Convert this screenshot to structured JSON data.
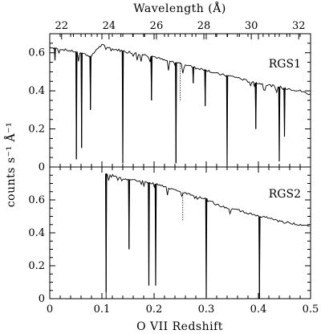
{
  "chart_data": {
    "type": "line",
    "top_axis": {
      "label": "Wavelength (Å)",
      "range": [
        21.5,
        32.5
      ],
      "ticks": [
        22,
        24,
        26,
        28,
        30,
        32
      ]
    },
    "x_axis": {
      "label": "O VII Redshift",
      "range": [
        0,
        0.5
      ],
      "ticks": [
        "0",
        "0.1",
        "0.2",
        "0.3",
        "0.4",
        "0.5"
      ]
    },
    "y_label": "counts s⁻¹ Å⁻¹",
    "panels": [
      {
        "label": "RGS1",
        "ylim": [
          0,
          0.7
        ],
        "yticks": [
          "0",
          "0.2",
          "0.4",
          "0.6"
        ],
        "x": [
          0,
          0.02,
          0.04,
          0.06,
          0.08,
          0.09,
          0.1,
          0.12,
          0.14,
          0.16,
          0.18,
          0.2,
          0.22,
          0.24,
          0.26,
          0.28,
          0.3,
          0.32,
          0.34,
          0.36,
          0.38,
          0.4,
          0.42,
          0.44,
          0.46,
          0.48,
          0.5
        ],
        "values": [
          0.63,
          0.62,
          0.61,
          0.6,
          0.58,
          0.62,
          0.64,
          0.62,
          0.61,
          0.6,
          0.59,
          0.58,
          0.56,
          0.55,
          0.54,
          0.52,
          0.51,
          0.49,
          0.48,
          0.47,
          0.45,
          0.44,
          0.43,
          0.42,
          0.41,
          0.4,
          0.38
        ],
        "absorption_lines": [
          {
            "x": 0.01,
            "depth": 0.56
          },
          {
            "x": 0.051,
            "depth": 0.04
          },
          {
            "x": 0.061,
            "depth": 0.1
          },
          {
            "x": 0.078,
            "depth": 0.3
          },
          {
            "x": 0.14,
            "depth": 0.02
          },
          {
            "x": 0.195,
            "depth": 0.35
          },
          {
            "x": 0.242,
            "depth": 0.02
          },
          {
            "x": 0.275,
            "depth": 0.44
          },
          {
            "x": 0.298,
            "depth": 0.32
          },
          {
            "x": 0.34,
            "depth": 0.01
          },
          {
            "x": 0.395,
            "depth": 0.2
          },
          {
            "x": 0.44,
            "depth": 0.03
          },
          {
            "x": 0.45,
            "depth": 0.16
          }
        ],
        "dotted_lines": [
          {
            "x": 0.25,
            "depth": 0.35
          }
        ]
      },
      {
        "label": "RGS2",
        "ylim": [
          0,
          0.8
        ],
        "yticks": [
          "0",
          "0.2",
          "0.4",
          "0.6"
        ],
        "x": [
          0.108,
          0.12,
          0.14,
          0.16,
          0.18,
          0.2,
          0.22,
          0.24,
          0.26,
          0.28,
          0.3,
          0.32,
          0.34,
          0.36,
          0.38,
          0.4,
          0.42,
          0.44,
          0.46,
          0.48,
          0.5
        ],
        "values": [
          0.76,
          0.75,
          0.73,
          0.72,
          0.71,
          0.7,
          0.68,
          0.66,
          0.64,
          0.62,
          0.61,
          0.57,
          0.55,
          0.54,
          0.52,
          0.5,
          0.49,
          0.47,
          0.46,
          0.45,
          0.44
        ],
        "absorption_lines": [
          {
            "x": 0.108,
            "depth": 0.04
          },
          {
            "x": 0.152,
            "depth": 0.3
          },
          {
            "x": 0.19,
            "depth": 0.08
          },
          {
            "x": 0.203,
            "depth": 0.08
          },
          {
            "x": 0.3,
            "depth": 0.01
          },
          {
            "x": 0.402,
            "depth": 0.0
          }
        ],
        "dotted_lines": [
          {
            "x": 0.255,
            "depth": 0.47
          }
        ]
      }
    ]
  }
}
